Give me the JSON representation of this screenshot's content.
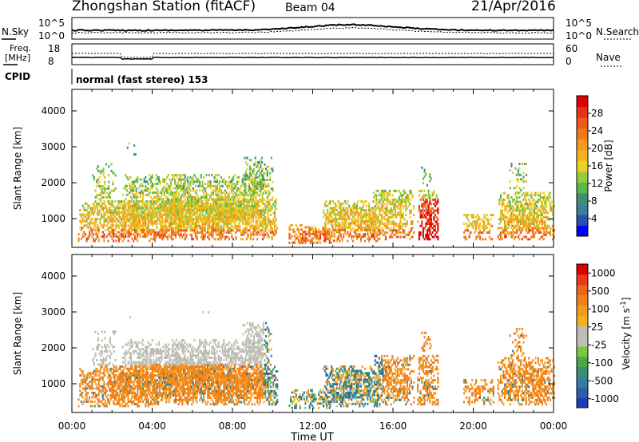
{
  "header": {
    "station": "Zhongshan Station (fitACF)",
    "beam": "Beam 04",
    "date": "21/Apr/2016"
  },
  "panels": {
    "nsky": {
      "label": "N.Sky",
      "ticks": [
        "10^5",
        "10^0"
      ]
    },
    "nsearch": {
      "label": "N.Search",
      "ticks": [
        "10^5",
        "10^0"
      ]
    },
    "freq": {
      "label_line1": "Freq.",
      "label_line2": "[MHz]",
      "ticks": [
        "18",
        "8"
      ]
    },
    "nave": {
      "label": "Nave",
      "ticks": [
        "60",
        "0"
      ]
    },
    "cpid": {
      "label": "CPID",
      "value": "normal (fast stereo) 153"
    }
  },
  "chart_data": [
    {
      "type": "heatmap",
      "name": "power",
      "xlabel": "",
      "ylabel": "Slant Range [km]",
      "x_ticks": [
        "00:00",
        "04:00",
        "08:00",
        "12:00",
        "16:00",
        "20:00",
        "00:00"
      ],
      "y_ticks": [
        1000,
        2000,
        3000,
        4000
      ],
      "ylim": [
        200,
        4600
      ],
      "colorbar": {
        "label": "Power [dB]",
        "ticks": [
          4,
          8,
          12,
          16,
          20,
          24,
          28
        ],
        "colors": [
          "#0000ff",
          "#2a4fb0",
          "#3b7fa0",
          "#3f9070",
          "#5ab848",
          "#9acb3c",
          "#f0d020",
          "#f5b320",
          "#f59a1e",
          "#f07a1a",
          "#ee5a18",
          "#e83018",
          "#e00000"
        ]
      }
    },
    {
      "type": "heatmap",
      "name": "velocity",
      "xlabel": "Time UT",
      "ylabel": "Slant Range [km]",
      "x_ticks": [
        "00:00",
        "04:00",
        "08:00",
        "12:00",
        "16:00",
        "20:00",
        "00:00"
      ],
      "y_ticks": [
        1000,
        2000,
        3000,
        4000
      ],
      "ylim": [
        200,
        4600
      ],
      "colorbar": {
        "label": "Velocity [m s^-1]",
        "ticks": [
          "1000",
          "500",
          "100",
          "25",
          "-25",
          "-100",
          "-500",
          "-1000"
        ],
        "colors": [
          "#1a3fb8",
          "#2a5fa8",
          "#2f7fa0",
          "#3a9070",
          "#4aa848",
          "#7cc83c",
          "#c0c0b8",
          "#bcbcb4",
          "#f5b020",
          "#f59a1e",
          "#f0801a",
          "#ee6418",
          "#e83a18",
          "#e00000"
        ]
      }
    }
  ]
}
